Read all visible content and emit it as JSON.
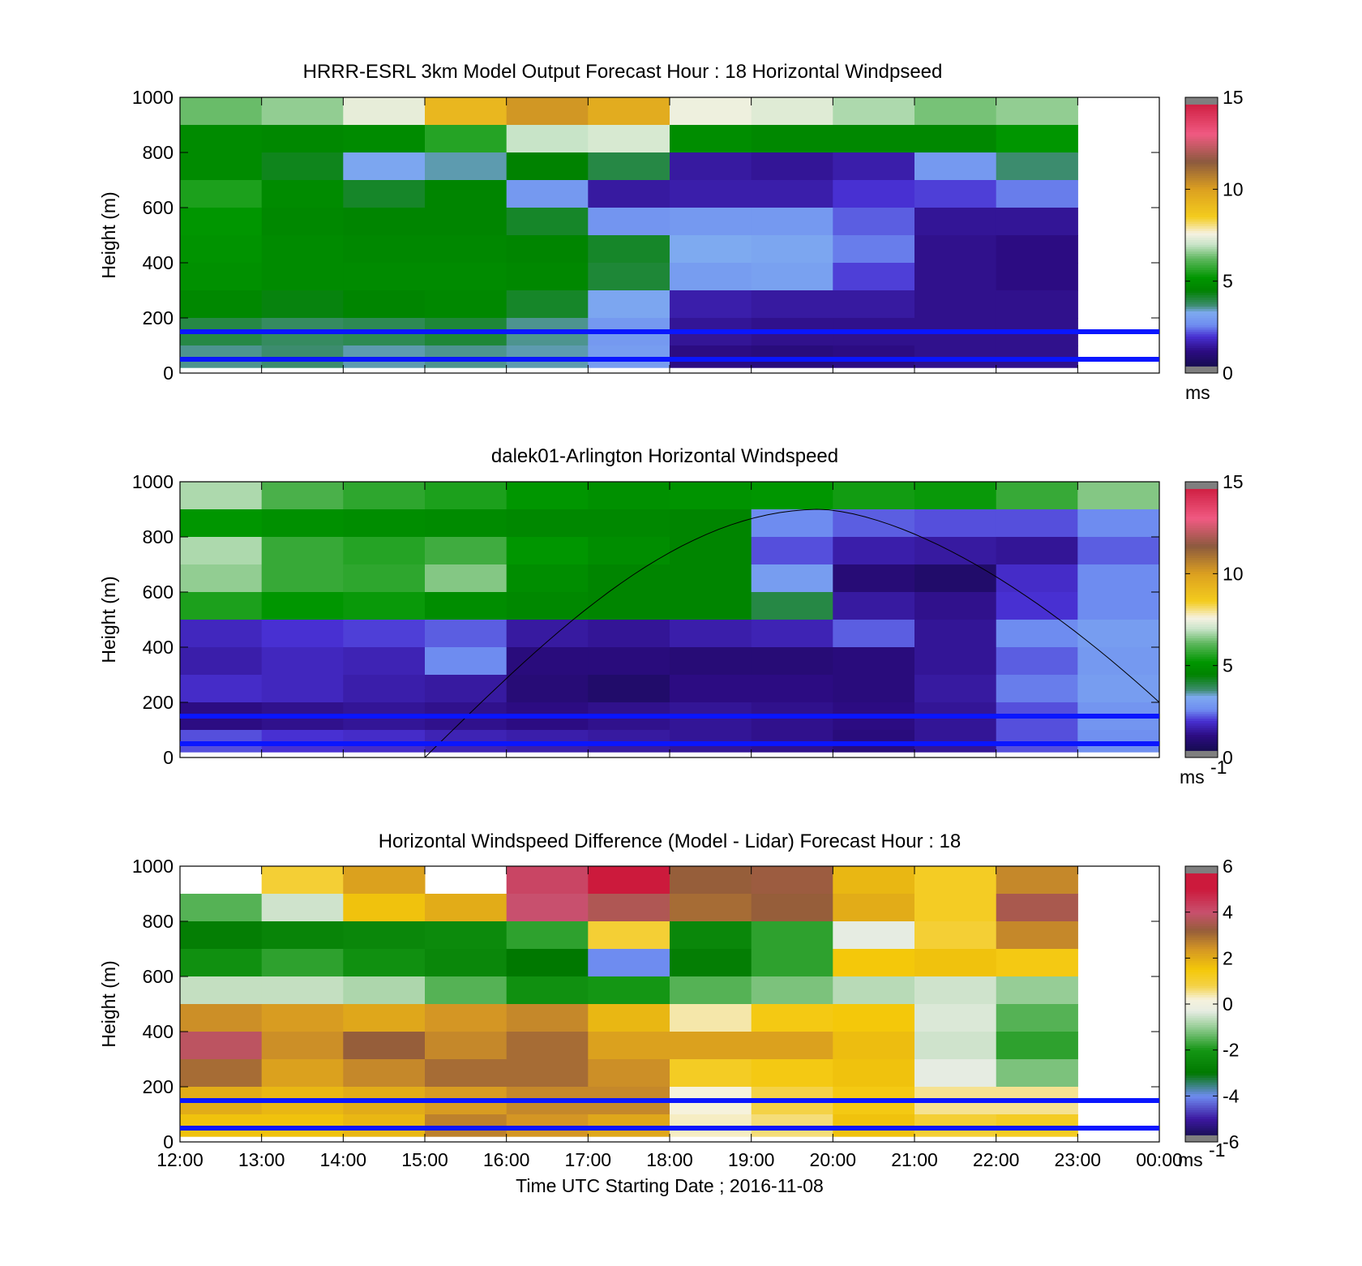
{
  "figure": {
    "xlabel": "Time UTC  Starting Date ; 2016-11-08",
    "x_tick_labels": [
      "12:00",
      "13:00",
      "14:00",
      "15:00",
      "16:00",
      "17:00",
      "18:00",
      "19:00",
      "20:00",
      "21:00",
      "22:00",
      "23:00",
      "00:00"
    ]
  },
  "chart_data": [
    {
      "type": "heatmap",
      "title": "HRRR-ESRL 3km Model Output   Forecast Hour : 18 Horizontal Windpseed",
      "ylabel": "Height (m)",
      "xlim": [
        "12:00",
        "00:00"
      ],
      "ylim": [
        0,
        1000
      ],
      "y_ticks": [
        0,
        200,
        400,
        600,
        800,
        1000
      ],
      "colorbar": {
        "min": 0,
        "max": 15,
        "ticks": [
          0,
          5,
          10,
          15
        ],
        "unit": "ms",
        "unit_sup": ""
      },
      "reference_lines_m": [
        150,
        50
      ],
      "description_values": "approximate windspeed (m/s) per hourly column 12:00-23:00, from top level (1000 m) downward",
      "columns_hours": [
        "12:00",
        "13:00",
        "14:00",
        "15:00",
        "16:00",
        "17:00",
        "18:00",
        "19:00",
        "20:00",
        "21:00",
        "22:00"
      ],
      "levels_m": [
        950,
        850,
        750,
        650,
        550,
        450,
        350,
        250,
        150,
        60
      ],
      "values": [
        [
          6.3,
          6.6,
          7.4,
          9.2,
          10.2,
          9.6,
          7.5,
          7.3,
          6.8,
          6.4,
          6.6
        ],
        [
          4.8,
          4.7,
          4.8,
          5.6,
          7.0,
          7.2,
          4.9,
          4.7,
          4.7,
          4.7,
          5.2
        ],
        [
          4.8,
          4.3,
          3.2,
          3.5,
          4.5,
          4.0,
          1.5,
          1.4,
          1.6,
          2.9,
          3.7
        ],
        [
          5.5,
          4.8,
          4.2,
          4.6,
          2.9,
          1.5,
          1.6,
          1.6,
          2.0,
          2.1,
          2.5
        ],
        [
          5.2,
          4.7,
          4.6,
          4.6,
          4.2,
          2.8,
          2.9,
          2.9,
          2.3,
          1.4,
          1.4
        ],
        [
          5.1,
          4.8,
          4.7,
          4.7,
          4.6,
          4.2,
          3.3,
          3.2,
          2.5,
          1.3,
          1.2
        ],
        [
          5.0,
          4.8,
          4.8,
          4.8,
          4.7,
          4.1,
          3.0,
          3.1,
          2.1,
          1.3,
          1.2
        ],
        [
          4.7,
          4.4,
          4.6,
          4.7,
          4.2,
          3.2,
          1.6,
          1.5,
          1.5,
          1.3,
          1.3
        ],
        [
          4.0,
          3.8,
          3.9,
          4.1,
          3.6,
          2.9,
          1.4,
          1.3,
          1.3,
          1.3,
          1.3
        ],
        [
          3.6,
          3.7,
          3.5,
          3.6,
          3.5,
          3.0,
          1.2,
          1.1,
          1.2,
          1.3,
          1.3
        ]
      ]
    },
    {
      "type": "heatmap",
      "title": "dalek01-Arlington  Horizontal Windspeed",
      "ylabel": "Height (m)",
      "xlim": [
        "12:00",
        "00:00"
      ],
      "ylim": [
        0,
        1000
      ],
      "y_ticks": [
        0,
        200,
        400,
        600,
        800,
        1000
      ],
      "colorbar": {
        "min": 0,
        "max": 15,
        "ticks": [
          0,
          5,
          10,
          15
        ],
        "unit": "ms",
        "unit_sup": "-1"
      },
      "reference_lines_m": [
        150,
        50
      ],
      "curve": "thin black arc from ~15:00 at 0 m peaking near 900 m at ~19:50, descending to ~200 m at 00:00",
      "columns_hours": [
        "12:00",
        "13:00",
        "14:00",
        "15:00",
        "16:00",
        "17:00",
        "18:00",
        "19:00",
        "20:00",
        "21:00",
        "22:00",
        "23:00"
      ],
      "levels_m": [
        950,
        850,
        750,
        650,
        550,
        450,
        350,
        250,
        150,
        60
      ],
      "values": [
        [
          6.8,
          6.0,
          5.7,
          5.5,
          5.2,
          5.0,
          5.1,
          5.2,
          5.4,
          5.3,
          5.8,
          6.5
        ],
        [
          5.2,
          5.0,
          4.9,
          4.8,
          4.7,
          4.7,
          4.6,
          2.6,
          2.3,
          2.2,
          2.2,
          2.6
        ],
        [
          6.8,
          5.8,
          5.6,
          5.9,
          5.2,
          4.9,
          4.6,
          2.2,
          1.6,
          1.5,
          1.4,
          2.3
        ],
        [
          6.6,
          5.8,
          5.7,
          6.5,
          4.9,
          4.6,
          4.6,
          3.0,
          1.0,
          0.8,
          1.9,
          2.6
        ],
        [
          5.5,
          5.2,
          5.3,
          4.9,
          4.7,
          4.6,
          4.6,
          4.0,
          1.5,
          1.3,
          2.0,
          2.6
        ],
        [
          1.8,
          2.0,
          2.1,
          2.3,
          1.5,
          1.4,
          1.6,
          1.7,
          2.3,
          1.4,
          2.6,
          3.0
        ],
        [
          1.6,
          1.8,
          1.7,
          2.6,
          1.1,
          1.1,
          1.0,
          1.0,
          1.1,
          1.4,
          2.3,
          2.9
        ],
        [
          1.9,
          1.8,
          1.6,
          1.5,
          1.0,
          0.8,
          1.2,
          1.2,
          1.1,
          1.5,
          2.5,
          3.0
        ],
        [
          1.2,
          1.3,
          1.4,
          1.3,
          1.2,
          1.3,
          1.4,
          1.3,
          1.2,
          1.4,
          2.2,
          2.8
        ],
        [
          2.2,
          2.0,
          1.9,
          1.7,
          1.6,
          1.5,
          1.4,
          1.3,
          1.1,
          1.4,
          2.2,
          2.7
        ]
      ]
    },
    {
      "type": "heatmap",
      "title": "Horizontal Windspeed Difference (Model - Lidar) Forecast Hour : 18",
      "ylabel": "Height (m)",
      "xlabel": "Time UTC  Starting Date ; 2016-11-08",
      "xlim": [
        "12:00",
        "00:00"
      ],
      "ylim": [
        0,
        1000
      ],
      "y_ticks": [
        0,
        200,
        400,
        600,
        800,
        1000
      ],
      "colorbar": {
        "min": -6,
        "max": 6,
        "ticks": [
          -6,
          -4,
          -2,
          0,
          2,
          4,
          6
        ],
        "unit": "ms",
        "unit_sup": "-1"
      },
      "reference_lines_m": [
        150,
        50
      ],
      "columns_hours": [
        "12:00",
        "13:00",
        "14:00",
        "15:00",
        "16:00",
        "17:00",
        "18:00",
        "19:00",
        "20:00",
        "21:00",
        "22:00"
      ],
      "levels_m": [
        950,
        850,
        750,
        650,
        550,
        450,
        350,
        250,
        150,
        60
      ],
      "values": [
        [
          null,
          1.0,
          2.2,
          null,
          4.2,
          5.0,
          3.2,
          3.3,
          1.8,
          1.2,
          2.6
        ],
        [
          -1.5,
          -0.5,
          1.6,
          2.0,
          4.0,
          3.6,
          3.0,
          3.2,
          2.0,
          1.2,
          3.5
        ],
        [
          -2.8,
          -2.6,
          -2.5,
          -2.4,
          -1.8,
          1.0,
          -2.5,
          -1.8,
          -0.3,
          1.0,
          2.6
        ],
        [
          -2.2,
          -1.8,
          -2.2,
          -2.5,
          -3.0,
          -4.0,
          -2.8,
          -1.8,
          1.5,
          1.6,
          1.4
        ],
        [
          -0.6,
          -0.6,
          -0.8,
          -1.5,
          -2.2,
          -2.0,
          -1.5,
          -1.2,
          -0.7,
          -0.5,
          -1.0
        ],
        [
          2.5,
          2.3,
          2.1,
          2.4,
          2.6,
          1.8,
          0.4,
          1.4,
          1.5,
          -0.4,
          -1.5
        ],
        [
          3.8,
          2.5,
          3.2,
          2.6,
          3.0,
          2.2,
          2.2,
          2.2,
          1.7,
          -0.5,
          -1.8
        ],
        [
          3.0,
          2.2,
          2.6,
          3.0,
          3.0,
          2.5,
          1.2,
          1.4,
          1.6,
          -0.3,
          -1.2
        ],
        [
          2.0,
          1.8,
          2.0,
          2.3,
          2.6,
          2.6,
          0.2,
          0.8,
          1.4,
          0.5,
          0.5
        ],
        [
          1.6,
          1.6,
          1.8,
          2.7,
          2.4,
          2.1,
          0.3,
          0.6,
          1.6,
          1.0,
          1.2
        ]
      ]
    }
  ]
}
